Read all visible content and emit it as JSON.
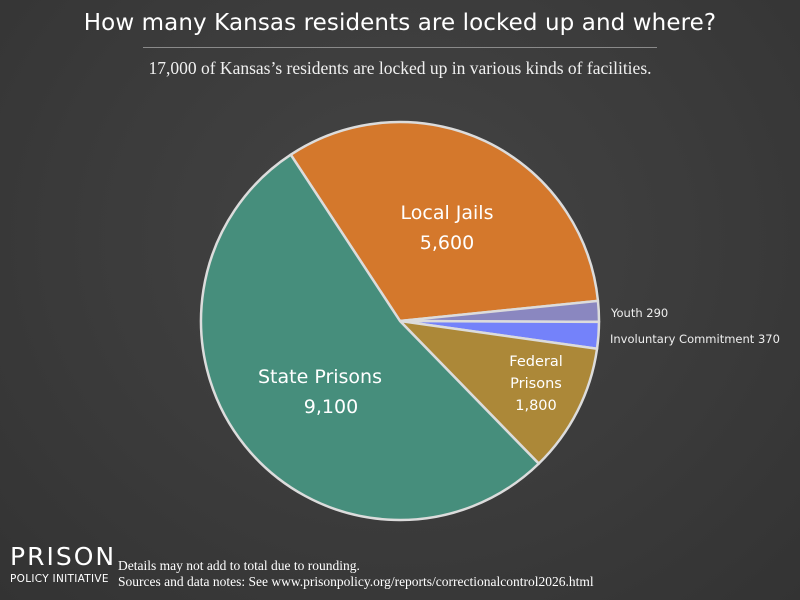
{
  "header": {
    "title": "How many Kansas residents are locked up and where?",
    "subtitle": "17,000 of Kansas’s residents are locked up in various kinds of facilities."
  },
  "chart_data": {
    "type": "pie",
    "title": "How many Kansas residents are locked up and where?",
    "subtitle": "17,000 of Kansas’s residents are locked up in various kinds of facilities.",
    "total_label": "17,000",
    "slices": [
      {
        "name": "Local Jails",
        "value": 5600,
        "label": "5,600",
        "color": "#D4782C"
      },
      {
        "name": "Youth",
        "value": 290,
        "label": "290",
        "color": "#8A87C0"
      },
      {
        "name": "Involuntary Commitment",
        "value": 370,
        "label": "370",
        "color": "#7482FA"
      },
      {
        "name": "Federal Prisons",
        "value": 1800,
        "label": "1,800",
        "color": "#AC8838"
      },
      {
        "name": "State Prisons",
        "value": 9100,
        "label": "9,100",
        "color": "#468E7C"
      }
    ],
    "start_angle_deg": -33.3,
    "direction": "clockwise",
    "legend": "none (direct labels)"
  },
  "labels": {
    "local_jails": {
      "name": "Local Jails",
      "value": "5,600"
    },
    "state_prisons": {
      "name": "State Prisons",
      "value": "9,100"
    },
    "federal_prisons": {
      "name_line1": "Federal",
      "name_line2": "Prisons",
      "value": "1,800"
    },
    "youth": "Youth 290",
    "involuntary": "Involuntary Commitment 370"
  },
  "footer": {
    "logo_line1": "PRISON",
    "logo_line2": "POLICY INITIATIVE",
    "note1": "Details may not add to total due to rounding.",
    "note2": "Sources and data notes: See www.prisonpolicy.org/reports/correctionalcontrol2026.html"
  }
}
